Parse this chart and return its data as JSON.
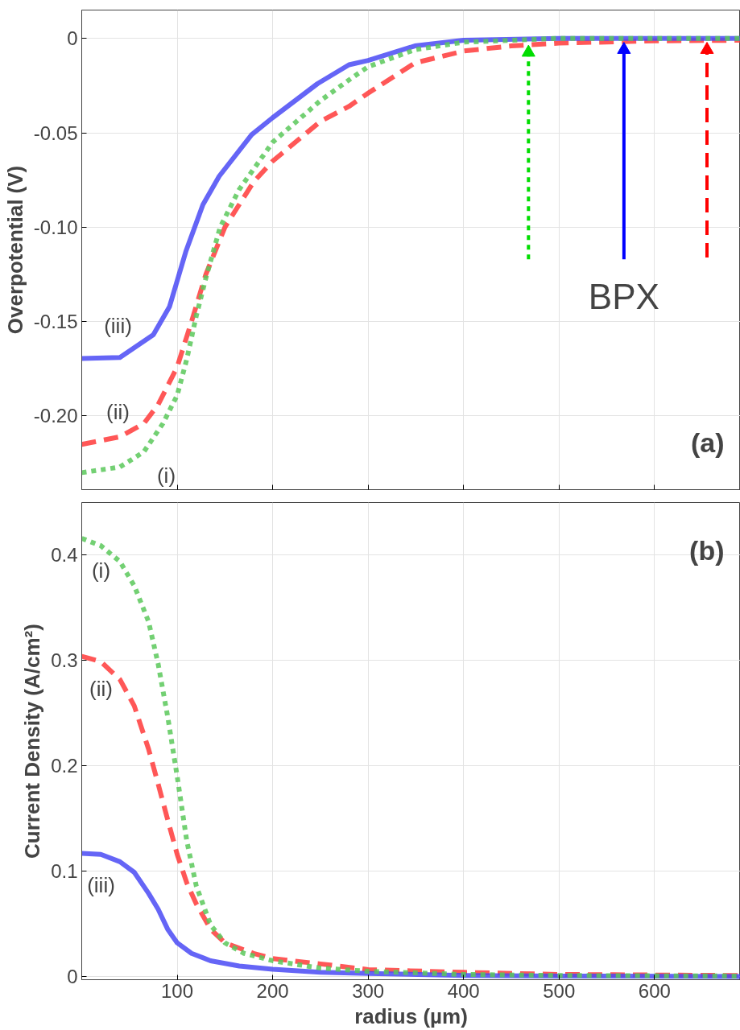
{
  "chart_data": [
    {
      "type": "line",
      "ylabel": "Overpotential (V)",
      "xlim": [
        0,
        690
      ],
      "ylim": [
        -0.239,
        0.015
      ],
      "xticks": [
        {
          "value": 100,
          "label": null
        },
        {
          "value": 200,
          "label": null
        },
        {
          "value": 300,
          "label": null
        },
        {
          "value": 400,
          "label": null
        },
        {
          "value": 500,
          "label": null
        },
        {
          "value": 600,
          "label": null
        }
      ],
      "yticks": [
        0,
        -0.05,
        {
          "value": -0.1,
          "label": "-0.10"
        },
        -0.15,
        {
          "value": -0.2,
          "label": "-0.20"
        }
      ],
      "tick_labels": "y",
      "grid": true,
      "legend": false,
      "series": [
        {
          "name": "(ii)",
          "color": "#ff3a3a",
          "line_style": "dashed",
          "x": [
            0,
            40,
            65,
            80,
            100,
            115,
            130,
            150,
            180,
            200,
            250,
            280,
            300,
            349,
            400,
            450,
            500,
            600,
            690
          ],
          "values": [
            -0.215,
            -0.211,
            -0.204,
            -0.194,
            -0.174,
            -0.15,
            -0.125,
            -0.1,
            -0.076,
            -0.065,
            -0.044,
            -0.036,
            -0.029,
            -0.013,
            -0.0067,
            -0.004,
            -0.0025,
            -0.0013,
            -0.001
          ]
        },
        {
          "name": "(iii)",
          "color": "#4a4af5",
          "line_style": "solid",
          "x": [
            0,
            40,
            75,
            92,
            109,
            127,
            144,
            178,
            200,
            247,
            280,
            300,
            349,
            400,
            500,
            600,
            690
          ],
          "values": [
            -0.1695,
            -0.169,
            -0.157,
            -0.142,
            -0.113,
            -0.088,
            -0.073,
            -0.051,
            -0.042,
            -0.024,
            -0.014,
            -0.0117,
            -0.004,
            -0.001,
            0,
            0,
            0
          ]
        },
        {
          "name": "(i)",
          "color": "#5ac85a",
          "line_style": "dotted",
          "x": [
            0,
            40,
            65,
            85,
            100,
            110,
            120,
            130,
            145,
            165,
            200,
            250,
            280,
            300,
            349,
            400,
            450,
            500,
            600,
            690
          ],
          "values": [
            -0.23,
            -0.227,
            -0.219,
            -0.204,
            -0.189,
            -0.17,
            -0.147,
            -0.127,
            -0.1,
            -0.08,
            -0.055,
            -0.033,
            -0.022,
            -0.015,
            -0.006,
            -0.002,
            -0.001,
            0,
            0,
            0
          ]
        },
        {
          "color": "#00dd00",
          "line_style": "dotted",
          "marker": "triangle",
          "x": [
            468,
            468
          ],
          "values": [
            -0.117,
            -0.0075
          ]
        },
        {
          "name": "BPX",
          "color": "#0000ff",
          "line_style": "solid",
          "marker": "triangle",
          "x": [
            568,
            568
          ],
          "values": [
            -0.117,
            -0.006
          ]
        },
        {
          "color": "#ff0000",
          "line_style": "dashed",
          "marker": "triangle",
          "x": [
            655,
            655
          ],
          "values": [
            -0.116,
            -0.006
          ]
        }
      ],
      "annotations": [
        "(a)"
      ]
    },
    {
      "type": "line",
      "xlabel": "radius (µm)",
      "ylabel": "Current Density (A/cm²)",
      "xlim": [
        0,
        690
      ],
      "ylim": [
        -0.003,
        0.45
      ],
      "xticks": [
        100,
        200,
        300,
        400,
        500,
        600
      ],
      "yticks": [
        0,
        0.1,
        0.2,
        0.3,
        0.4
      ],
      "grid": true,
      "legend": false,
      "series": [
        {
          "name": "(ii)",
          "color": "#ff3a3a",
          "line_style": "dashed",
          "x": [
            0,
            20,
            40,
            55,
            70,
            80,
            90,
            100,
            110,
            120,
            135,
            150,
            180,
            200,
            250,
            300,
            400,
            500,
            690
          ],
          "values": [
            0.304,
            0.299,
            0.282,
            0.257,
            0.216,
            0.183,
            0.149,
            0.116,
            0.089,
            0.069,
            0.045,
            0.032,
            0.022,
            0.017,
            0.012,
            0.0066,
            0.004,
            0.002,
            0.001
          ]
        },
        {
          "name": "(iii)",
          "color": "#4a4af5",
          "line_style": "solid",
          "x": [
            0,
            20,
            40,
            55,
            70,
            80,
            90,
            100,
            115,
            135,
            165,
            200,
            250,
            300,
            400,
            500,
            690
          ],
          "values": [
            0.117,
            0.116,
            0.109,
            0.099,
            0.079,
            0.064,
            0.045,
            0.032,
            0.022,
            0.015,
            0.01,
            0.007,
            0.004,
            0.003,
            0.001,
            0.0005,
            0
          ]
        },
        {
          "name": "(i)",
          "color": "#5ac85a",
          "line_style": "dotted",
          "x": [
            0,
            20,
            40,
            55,
            70,
            80,
            90,
            100,
            110,
            120,
            135,
            150,
            170,
            200,
            250,
            300,
            400,
            500,
            690
          ],
          "values": [
            0.416,
            0.409,
            0.394,
            0.371,
            0.337,
            0.297,
            0.247,
            0.19,
            0.129,
            0.086,
            0.049,
            0.032,
            0.022,
            0.015,
            0.008,
            0.005,
            0.002,
            0.001,
            0.0005
          ]
        }
      ],
      "annotations": [
        "(b)"
      ]
    }
  ]
}
